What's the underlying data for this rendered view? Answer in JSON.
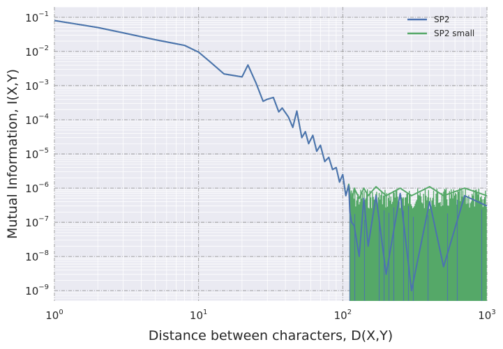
{
  "chart_data": {
    "type": "line",
    "xscale": "log",
    "yscale": "log",
    "xlim": [
      1,
      1000
    ],
    "ylim": [
      5e-10,
      0.2
    ],
    "xlabel": "Distance between characters, D(X,Y)",
    "ylabel": "Mutual Information, I(X,Y)",
    "grid": true,
    "legend_position": "top-right",
    "x_ticks": [
      {
        "value": 1,
        "base": "10",
        "exp": "0"
      },
      {
        "value": 10,
        "base": "10",
        "exp": "1"
      },
      {
        "value": 100,
        "base": "10",
        "exp": "2"
      },
      {
        "value": 1000,
        "base": "10",
        "exp": "3"
      }
    ],
    "y_ticks": [
      {
        "value": 1e-09,
        "base": "10",
        "exp": "−9"
      },
      {
        "value": 1e-08,
        "base": "10",
        "exp": "−8"
      },
      {
        "value": 1e-07,
        "base": "10",
        "exp": "−7"
      },
      {
        "value": 1e-06,
        "base": "10",
        "exp": "−6"
      },
      {
        "value": 1e-05,
        "base": "10",
        "exp": "−5"
      },
      {
        "value": 0.0001,
        "base": "10",
        "exp": "−4"
      },
      {
        "value": 0.001,
        "base": "10",
        "exp": "−3"
      },
      {
        "value": 0.01,
        "base": "10",
        "exp": "−2"
      },
      {
        "value": 0.1,
        "base": "10",
        "exp": "−1"
      }
    ],
    "series": [
      {
        "name": "SP2",
        "color": "#4C72B0",
        "x": [
          1,
          2,
          3,
          5,
          8,
          10,
          12,
          15,
          20,
          22,
          25,
          28,
          30,
          33,
          36,
          38,
          42,
          45,
          48,
          52,
          55,
          58,
          62,
          66,
          70,
          75,
          80,
          85,
          90,
          95,
          100,
          105,
          110,
          112,
          115,
          120,
          130,
          140,
          150,
          170,
          200,
          250,
          300,
          400,
          500,
          700,
          1000
        ],
        "y": [
          0.08,
          0.05,
          0.035,
          0.022,
          0.015,
          0.0095,
          0.005,
          0.0022,
          0.0018,
          0.004,
          0.0012,
          0.00035,
          0.0004,
          0.00045,
          0.00017,
          0.00022,
          0.00012,
          6e-05,
          0.00018,
          3e-05,
          4.5e-05,
          2e-05,
          3.5e-05,
          1.2e-05,
          1.8e-05,
          6e-06,
          8e-06,
          3.5e-06,
          4e-06,
          1.5e-06,
          2.5e-06,
          6e-07,
          1.2e-06,
          2e-07,
          1e-07,
          8e-08,
          1e-08,
          5e-07,
          2e-08,
          6e-07,
          3e-09,
          7e-07,
          1e-09,
          4e-07,
          5e-09,
          6e-07,
          3e-07
        ]
      },
      {
        "name": "SP2 small",
        "color": "#55A868",
        "x": [
          1,
          2,
          3,
          5,
          8,
          10,
          12,
          15,
          20,
          22,
          25,
          28,
          30,
          33,
          36,
          38,
          42,
          45,
          48,
          52,
          55,
          58,
          62,
          66,
          70,
          75,
          80,
          85,
          90,
          95,
          100,
          105,
          110,
          112,
          115,
          120,
          130,
          140,
          150,
          170,
          200,
          250,
          300,
          400,
          500,
          700,
          1000
        ],
        "y": [
          0.08,
          0.05,
          0.035,
          0.022,
          0.015,
          0.0095,
          0.005,
          0.0022,
          0.0018,
          0.004,
          0.0012,
          0.00035,
          0.0004,
          0.00045,
          0.00017,
          0.00022,
          0.00012,
          6e-05,
          0.00018,
          3e-05,
          4.5e-05,
          2e-05,
          3.5e-05,
          1.2e-05,
          1.8e-05,
          6e-06,
          8e-06,
          3.5e-06,
          4e-06,
          1.5e-06,
          2.5e-06,
          6e-07,
          1.3e-06,
          8e-07,
          3e-07,
          1e-06,
          5e-07,
          1e-06,
          6e-07,
          1.1e-06,
          6e-07,
          1e-06,
          6e-07,
          1.1e-06,
          6e-07,
          1e-06,
          6e-07
        ]
      }
    ],
    "noise_band": {
      "description_free": true,
      "x_start": 112,
      "x_end": 1000,
      "y_low": 5e-10,
      "y_high": 1e-06
    }
  }
}
